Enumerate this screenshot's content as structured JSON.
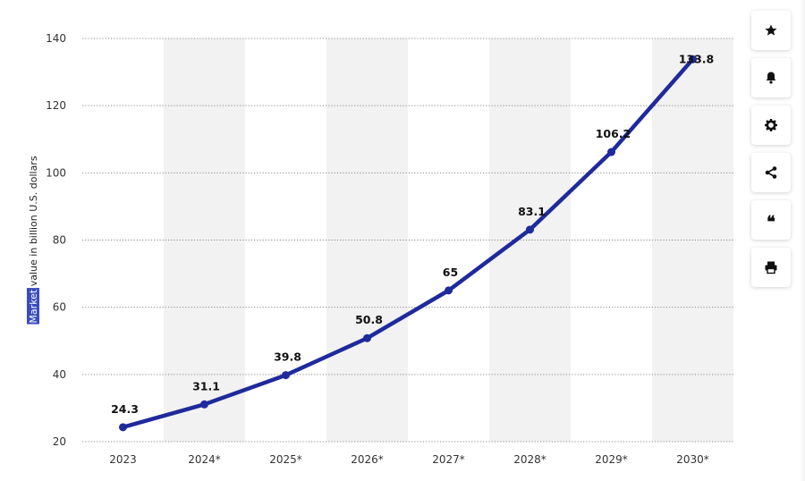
{
  "chart_data": {
    "type": "line",
    "categories": [
      "2023",
      "2024*",
      "2025*",
      "2026*",
      "2027*",
      "2028*",
      "2029*",
      "2030*"
    ],
    "series": [
      {
        "values": [
          24.3,
          31.1,
          39.8,
          50.8,
          65,
          83.1,
          106.2,
          133.8
        ]
      }
    ],
    "data_labels": [
      "24.3",
      "31.1",
      "39.8",
      "50.8",
      "65",
      "83.1",
      "106.2",
      "133.8"
    ],
    "xlabel": "",
    "ylabel_highlight": "Market",
    "ylabel": "value in billion U.S. dollars",
    "ylim": [
      20,
      140
    ],
    "yticks": [
      20,
      40,
      60,
      80,
      100,
      120,
      140
    ],
    "grid": "horizontal dotted",
    "alternating_column_shading": true,
    "line_color": "#1f2a9c",
    "band_color": "#f2f2f2",
    "highlight_color": "#3b4cc0"
  },
  "toolbar": {
    "items": [
      {
        "name": "star",
        "icon": "star-icon"
      },
      {
        "name": "bell",
        "icon": "bell-icon"
      },
      {
        "name": "settings",
        "icon": "gear-icon"
      },
      {
        "name": "share",
        "icon": "share-icon"
      },
      {
        "name": "cite",
        "icon": "quote-icon",
        "glyph": "❝"
      },
      {
        "name": "print",
        "icon": "print-icon"
      }
    ]
  }
}
